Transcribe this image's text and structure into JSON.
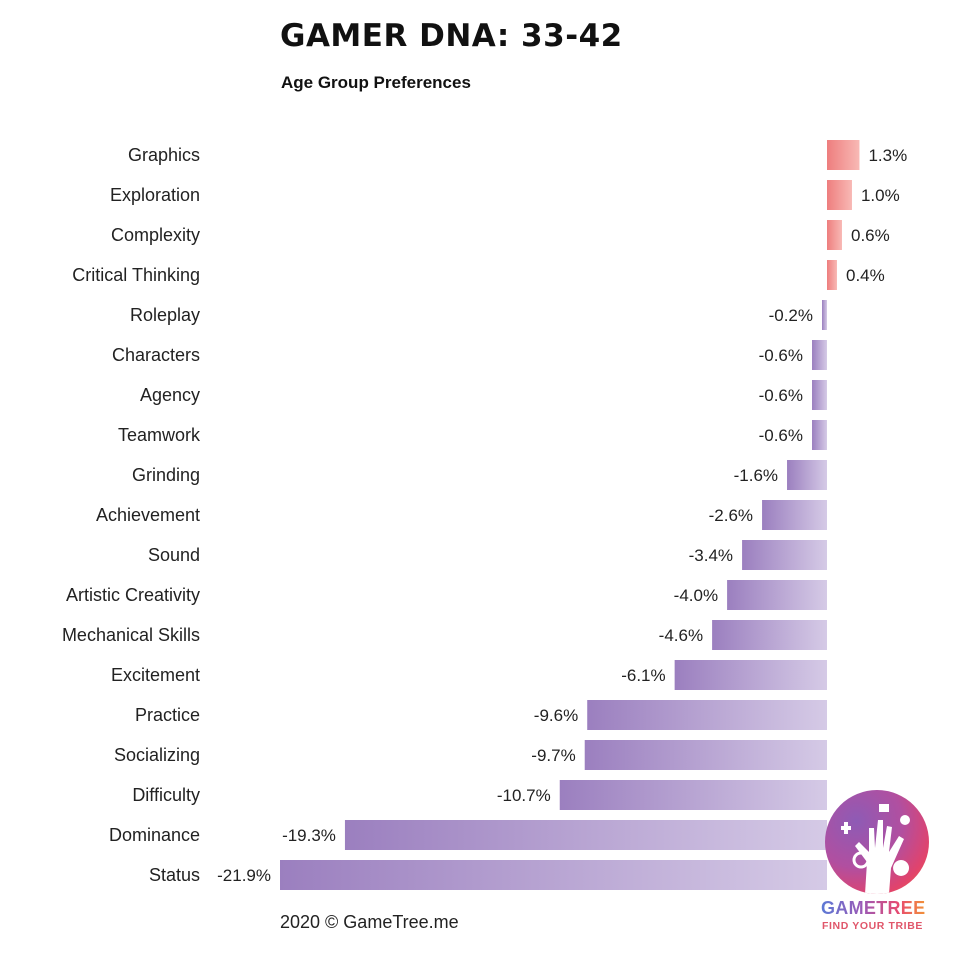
{
  "title": "GAMER DNA: 33-42",
  "subtitle": "Age Group Preferences",
  "footer": "2020 © GameTree.me",
  "logo": {
    "name": "GAMETREE",
    "tagline": "FIND YOUR TRIBE"
  },
  "colors": {
    "positive_dark": "#ee7e7e",
    "positive_light": "#f8b9b5",
    "negative_dark": "#9b7fbf",
    "negative_light": "#d5cae6"
  },
  "chart_data": {
    "type": "bar",
    "orientation": "horizontal",
    "categories": [
      "Graphics",
      "Exploration",
      "Complexity",
      "Critical Thinking",
      "Roleplay",
      "Characters",
      "Agency",
      "Teamwork",
      "Grinding",
      "Achievement",
      "Sound",
      "Artistic Creativity",
      "Mechanical Skills",
      "Excitement",
      "Practice",
      "Socializing",
      "Difficulty",
      "Dominance",
      "Status"
    ],
    "values": [
      1.3,
      1.0,
      0.6,
      0.4,
      -0.2,
      -0.6,
      -0.6,
      -0.6,
      -1.6,
      -2.6,
      -3.4,
      -4.0,
      -4.6,
      -6.1,
      -9.6,
      -9.7,
      -10.7,
      -19.3,
      -21.9
    ],
    "labels": [
      "1.3%",
      "1.0%",
      "0.6%",
      "0.4%",
      "-0.2%",
      "-0.6%",
      "-0.6%",
      "-0.6%",
      "-1.6%",
      "-2.6%",
      "-3.4%",
      "-4.0%",
      "-4.6%",
      "-6.1%",
      "-9.6%",
      "-9.7%",
      "-10.7%",
      "-19.3%",
      "-21.9%"
    ],
    "xlim": [
      -21.9,
      1.3
    ],
    "grid": false,
    "legend": false
  }
}
